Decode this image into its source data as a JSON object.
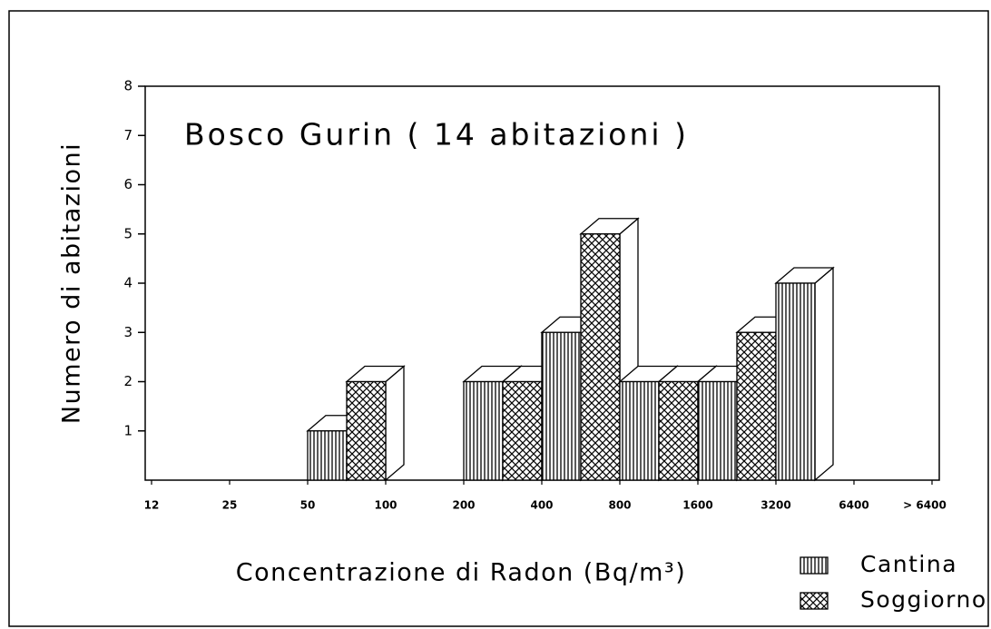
{
  "chart_data": {
    "type": "histogram",
    "title": "Bosco Gurin  ( 14 abitazioni  )",
    "x_label": "Concentrazione di Radon  (Bq/m³)",
    "y_label": "Numero di abitazioni",
    "bins": [
      12,
      25,
      50,
      100,
      200,
      400,
      800,
      1600,
      3200,
      6400,
      "> 6400"
    ],
    "series": [
      {
        "name": "Cantina",
        "pattern": "vertical-lines",
        "values": [
          0,
          0,
          1,
          0,
          2,
          3,
          2,
          2,
          4,
          0
        ]
      },
      {
        "name": "Soggiorno",
        "pattern": "crosshatch",
        "values": [
          0,
          0,
          2,
          0,
          2,
          5,
          2,
          3,
          0,
          0
        ]
      }
    ],
    "ylim": [
      0,
      8
    ],
    "yticks": [
      1,
      2,
      3,
      4,
      5,
      6,
      7,
      8
    ],
    "legend": "bottom-right",
    "color": "#000000"
  }
}
